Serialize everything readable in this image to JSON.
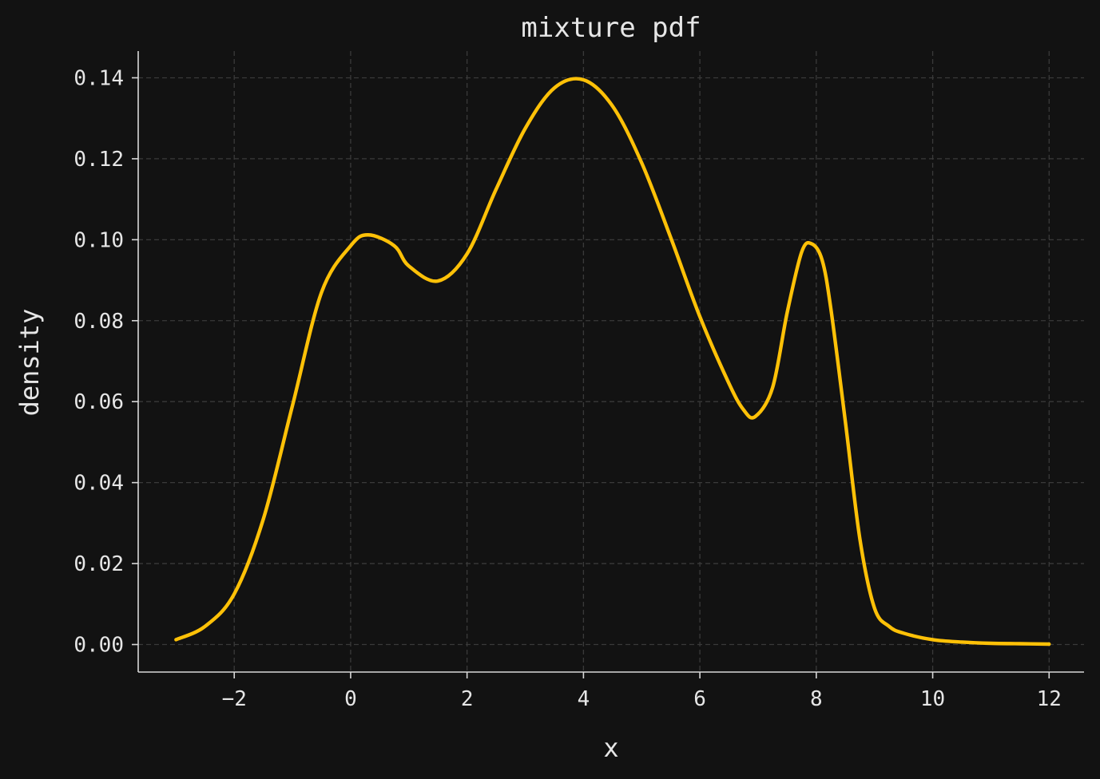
{
  "chart_data": {
    "type": "line",
    "title": "mixture pdf",
    "xlabel": "x",
    "ylabel": "density",
    "xlim": [
      -3.65,
      12.6
    ],
    "ylim": [
      -0.0068,
      0.1466
    ],
    "xticks": [
      -2,
      0,
      2,
      4,
      6,
      8,
      10,
      12
    ],
    "xtick_labels": [
      "−2",
      "0",
      "2",
      "4",
      "6",
      "8",
      "10",
      "12"
    ],
    "yticks": [
      0.0,
      0.02,
      0.04,
      0.06,
      0.08,
      0.1,
      0.12,
      0.14
    ],
    "ytick_labels": [
      "0.00",
      "0.02",
      "0.04",
      "0.06",
      "0.08",
      "0.10",
      "0.12",
      "0.14"
    ],
    "grid": true,
    "colors": {
      "background": "#121212",
      "line": "#FFC107",
      "grid": "#3a3a3a",
      "text": "#e6e6e6"
    },
    "series": [
      {
        "x": [
          -3.0,
          -2.5,
          -2.0,
          -1.5,
          -1.0,
          -0.5,
          0.0,
          0.3,
          0.75,
          1.0,
          1.5,
          2.0,
          2.5,
          3.0,
          3.5,
          4.0,
          4.5,
          5.0,
          5.5,
          6.0,
          6.5,
          6.75,
          6.95,
          7.25,
          7.5,
          7.75,
          7.92,
          8.1,
          8.25,
          8.5,
          8.75,
          9.0,
          9.25,
          9.5,
          10.0,
          10.5,
          11.0,
          11.5,
          12.0
        ],
        "y": [
          0.0012,
          0.0045,
          0.0125,
          0.031,
          0.059,
          0.087,
          0.0985,
          0.1012,
          0.0985,
          0.0935,
          0.0898,
          0.0965,
          0.1125,
          0.1275,
          0.1375,
          0.1395,
          0.133,
          0.119,
          0.1005,
          0.081,
          0.0645,
          0.058,
          0.0563,
          0.0635,
          0.082,
          0.097,
          0.099,
          0.095,
          0.083,
          0.055,
          0.026,
          0.009,
          0.0045,
          0.0028,
          0.0012,
          0.0006,
          0.0003,
          0.0002,
          0.0001
        ]
      }
    ]
  }
}
